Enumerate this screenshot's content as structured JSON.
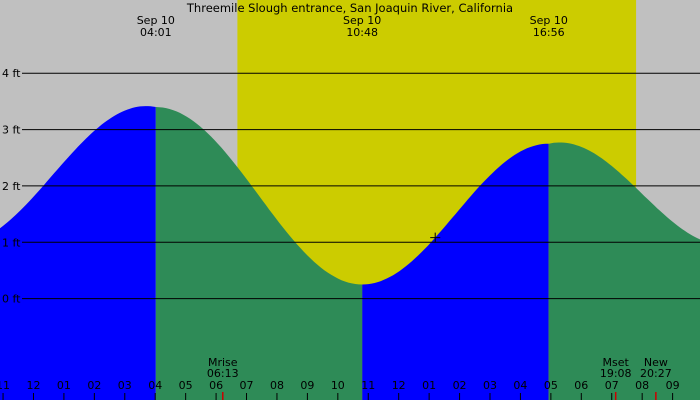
{
  "chart_data": {
    "type": "area",
    "title": "Threemile Slough entrance, San Joaquin River, California",
    "xlabel": "",
    "ylabel": "",
    "x_unit": "hours since midnight (local)",
    "xlim": [
      -1.1,
      21.9
    ],
    "ylim": [
      -1.8,
      5.3
    ],
    "y_ticks": [
      {
        "value": 0,
        "label": "0 ft"
      },
      {
        "value": 1,
        "label": "1 ft"
      },
      {
        "value": 2,
        "label": "2 ft"
      },
      {
        "value": 3,
        "label": "3 ft"
      },
      {
        "value": 4,
        "label": "4 ft"
      }
    ],
    "x_ticks": [
      {
        "value": -1,
        "label": "11"
      },
      {
        "value": 0,
        "label": "12"
      },
      {
        "value": 1,
        "label": "01"
      },
      {
        "value": 2,
        "label": "02"
      },
      {
        "value": 3,
        "label": "03"
      },
      {
        "value": 4,
        "label": "04"
      },
      {
        "value": 5,
        "label": "05"
      },
      {
        "value": 6,
        "label": "06"
      },
      {
        "value": 7,
        "label": "07"
      },
      {
        "value": 8,
        "label": "08"
      },
      {
        "value": 9,
        "label": "09"
      },
      {
        "value": 10,
        "label": "10"
      },
      {
        "value": 11,
        "label": "11"
      },
      {
        "value": 12,
        "label": "12"
      },
      {
        "value": 13,
        "label": "01"
      },
      {
        "value": 14,
        "label": "02"
      },
      {
        "value": 15,
        "label": "03"
      },
      {
        "value": 16,
        "label": "04"
      },
      {
        "value": 17,
        "label": "05"
      },
      {
        "value": 18,
        "label": "06"
      },
      {
        "value": 19,
        "label": "07"
      },
      {
        "value": 20,
        "label": "08"
      },
      {
        "value": 21,
        "label": "09"
      }
    ],
    "tide_events": [
      {
        "type": "high",
        "hour": 4.02,
        "height": 3.4,
        "date": "Sep 10",
        "time": "04:01"
      },
      {
        "type": "low",
        "hour": 10.8,
        "height": 0.25,
        "date": "Sep 10",
        "time": "10:48"
      },
      {
        "type": "high",
        "hour": 16.93,
        "height": 2.75,
        "date": "Sep 10",
        "time": "16:56"
      }
    ],
    "curve_edges": {
      "start": {
        "hour": -1.1,
        "height": 1.25
      },
      "end": {
        "hour": 21.9,
        "height": 1.05
      }
    },
    "daylight": [
      6.7,
      19.8
    ],
    "moon_events": [
      {
        "label": "Mrise",
        "time": "06:13",
        "hour": 6.22
      },
      {
        "label": "Mset",
        "time": "19:08",
        "hour": 19.13
      },
      {
        "label": "New",
        "time": "20:27",
        "hour": 20.45
      }
    ],
    "current_time_hour": 13.2,
    "colors": {
      "night": "#c0c0c0",
      "day": "#cccc00",
      "rising": "#0000ff",
      "falling": "#2e8b57",
      "marker": "#cc0000"
    }
  }
}
